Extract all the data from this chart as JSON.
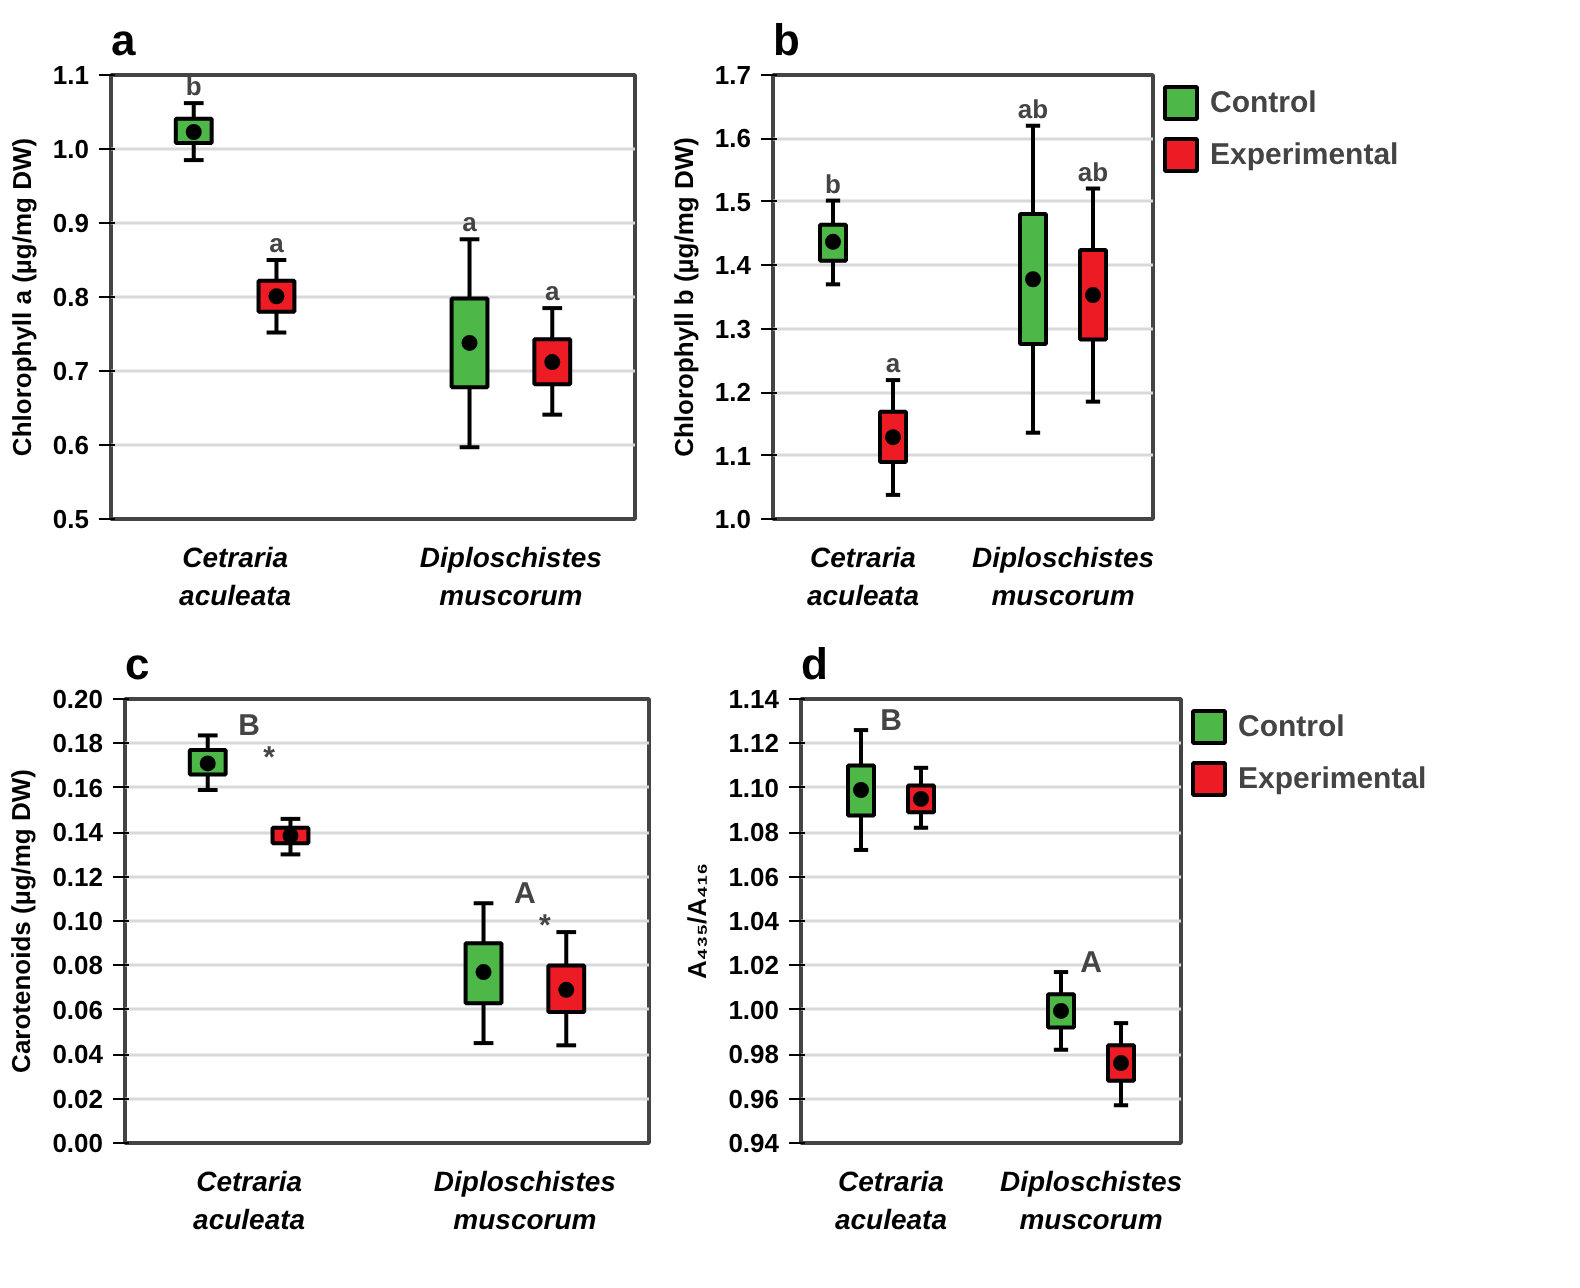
{
  "chart_data": [
    {
      "type": "box",
      "title": "a",
      "ylabel": "Chlorophyll a (µg/mg DW)",
      "categories": [
        "Cetraria aculeata",
        "Diploschistes muscorum"
      ],
      "ylim": [
        0.5,
        1.1
      ],
      "yticks": [
        0.5,
        0.6,
        0.7,
        0.8,
        0.9,
        {
          "value": 1.0,
          "label": "1.0"
        },
        1.1
      ],
      "grid": "y",
      "legend": false,
      "series": [
        {
          "color": "#4db848",
          "value_labels": [
            "b",
            "a"
          ],
          "boxes": [
            {
              "low": 0.985,
              "q1": 1.008,
              "median": 1.023,
              "q3": 1.041,
              "high": 1.062
            },
            {
              "low": 0.597,
              "q1": 0.678,
              "median": 0.738,
              "q3": 0.798,
              "high": 0.878
            }
          ]
        },
        {
          "color": "#ed1c24",
          "value_labels": [
            "a",
            "a"
          ],
          "boxes": [
            {
              "low": 0.752,
              "q1": 0.78,
              "median": 0.801,
              "q3": 0.822,
              "high": 0.85
            },
            {
              "low": 0.641,
              "q1": 0.682,
              "median": 0.712,
              "q3": 0.743,
              "high": 0.785
            }
          ]
        }
      ]
    },
    {
      "type": "box",
      "title": "b",
      "ylabel": "Chlorophyll b (µg/mg DW)",
      "categories": [
        "Cetraria aculeata",
        "Diploschistes muscorum"
      ],
      "ylim": [
        1.0,
        1.7
      ],
      "yticks": [
        {
          "value": 1.0,
          "label": "1.0"
        },
        1.1,
        1.2,
        1.3,
        1.4,
        1.5,
        1.6,
        1.7
      ],
      "grid": "y",
      "legend": "top right",
      "series": [
        {
          "name": "Control",
          "color": "#4db848",
          "value_labels": [
            "b",
            "ab"
          ],
          "boxes": [
            {
              "low": 1.37,
              "q1": 1.407,
              "median": 1.437,
              "q3": 1.464,
              "high": 1.502
            },
            {
              "low": 1.136,
              "q1": 1.276,
              "median": 1.378,
              "q3": 1.481,
              "high": 1.62
            }
          ]
        },
        {
          "name": "Experimental",
          "color": "#ed1c24",
          "value_labels": [
            "a",
            "ab"
          ],
          "boxes": [
            {
              "low": 1.038,
              "q1": 1.09,
              "median": 1.129,
              "q3": 1.169,
              "high": 1.219
            },
            {
              "low": 1.185,
              "q1": 1.283,
              "median": 1.353,
              "q3": 1.424,
              "high": 1.521
            }
          ]
        }
      ]
    },
    {
      "type": "box",
      "title": "c",
      "ylabel": "Carotenoids (µg/mg DW)",
      "categories": [
        "Cetraria aculeata",
        "Diploschistes muscorum"
      ],
      "ylim": [
        0.0,
        0.2
      ],
      "yticks": [
        {
          "value": 0,
          "label": "0.00"
        },
        {
          "value": 0.02,
          "label": "0.02"
        },
        {
          "value": 0.04,
          "label": "0.04"
        },
        {
          "value": 0.06,
          "label": "0.06"
        },
        {
          "value": 0.08,
          "label": "0.08"
        },
        {
          "value": 0.1,
          "label": "0.10"
        },
        {
          "value": 0.12,
          "label": "0.12"
        },
        {
          "value": 0.14,
          "label": "0.14"
        },
        {
          "value": 0.16,
          "label": "0.16"
        },
        {
          "value": 0.18,
          "label": "0.18"
        },
        {
          "value": 0.2,
          "label": "0.20"
        }
      ],
      "grid": "y",
      "legend": false,
      "annotations": [
        "B",
        "*",
        "A",
        "*"
      ],
      "series": [
        {
          "color": "#4db848",
          "boxes": [
            {
              "low": 0.159,
              "q1": 0.166,
              "median": 0.171,
              "q3": 0.177,
              "high": 0.1836
            },
            {
              "low": 0.045,
              "q1": 0.063,
              "median": 0.077,
              "q3": 0.09,
              "high": 0.108
            }
          ]
        },
        {
          "color": "#ed1c24",
          "boxes": [
            {
              "low": 0.13,
              "q1": 0.135,
              "median": 0.1385,
              "q3": 0.142,
              "high": 0.146
            },
            {
              "low": 0.044,
              "q1": 0.059,
              "median": 0.069,
              "q3": 0.08,
              "high": 0.095
            }
          ]
        }
      ]
    },
    {
      "type": "box",
      "title": "d",
      "ylabel": "A₄₃₅/A₄₁₆",
      "categories": [
        "Cetraria aculeata",
        "Diploschistes muscorum"
      ],
      "ylim": [
        0.94,
        1.14
      ],
      "yticks": [
        {
          "value": 0.94,
          "label": "0.94"
        },
        {
          "value": 0.96,
          "label": "0.96"
        },
        {
          "value": 0.98,
          "label": "0.98"
        },
        {
          "value": 1.0,
          "label": "1.00"
        },
        {
          "value": 1.02,
          "label": "1.02"
        },
        {
          "value": 1.04,
          "label": "1.04"
        },
        {
          "value": 1.06,
          "label": "1.06"
        },
        {
          "value": 1.08,
          "label": "1.08"
        },
        {
          "value": 1.1,
          "label": "1.10"
        },
        {
          "value": 1.12,
          "label": "1.12"
        },
        {
          "value": 1.14,
          "label": "1.14"
        }
      ],
      "grid": "y",
      "legend": "top right",
      "annotations": [
        "B",
        "A"
      ],
      "series": [
        {
          "name": "Control",
          "color": "#4db848",
          "boxes": [
            {
              "low": 1.072,
              "q1": 1.0875,
              "median": 1.099,
              "q3": 1.11,
              "high": 1.126
            },
            {
              "low": 0.982,
              "q1": 0.992,
              "median": 0.9995,
              "q3": 1.007,
              "high": 1.017
            }
          ]
        },
        {
          "name": "Experimental",
          "color": "#ed1c24",
          "boxes": [
            {
              "low": 1.082,
              "q1": 1.089,
              "median": 1.095,
              "q3": 1.101,
              "high": 1.109
            },
            {
              "low": 0.957,
              "q1": 0.968,
              "median": 0.976,
              "q3": 0.984,
              "high": 0.994
            }
          ]
        }
      ]
    }
  ]
}
